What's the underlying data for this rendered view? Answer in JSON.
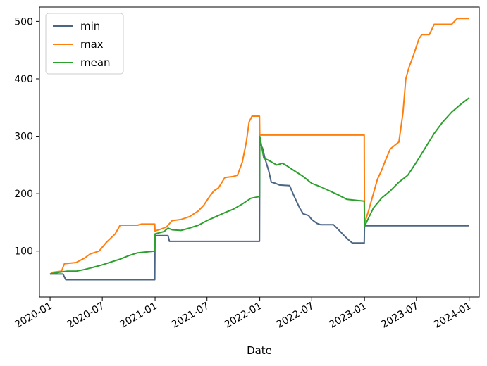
{
  "chart_data": {
    "type": "line",
    "title": "",
    "xlabel": "Date",
    "ylabel": "",
    "x_ticks": [
      "2020-01",
      "2020-07",
      "2021-01",
      "2021-07",
      "2022-01",
      "2022-07",
      "2023-01",
      "2023-07",
      "2024-01"
    ],
    "y_ticks": [
      100,
      200,
      300,
      400,
      500
    ],
    "xlim": [
      "2019-11-25",
      "2024-02-05"
    ],
    "ylim": [
      20,
      525
    ],
    "grid": false,
    "legend_position": "top-left",
    "colors": {
      "min": "#4b6584",
      "max": "#ff7f0e",
      "mean": "#2ca02c"
    },
    "series": [
      {
        "name": "min",
        "points": [
          [
            "2020-01-01",
            60
          ],
          [
            "2020-02-15",
            60
          ],
          [
            "2020-02-25",
            50
          ],
          [
            "2020-12-31",
            50
          ],
          [
            "2021-01-01",
            127
          ],
          [
            "2021-02-15",
            127
          ],
          [
            "2021-02-20",
            117
          ],
          [
            "2021-12-31",
            117
          ],
          [
            "2022-01-01",
            287
          ],
          [
            "2022-01-10",
            280
          ],
          [
            "2022-01-20",
            260
          ],
          [
            "2022-02-01",
            240
          ],
          [
            "2022-02-10",
            220
          ],
          [
            "2022-02-25",
            218
          ],
          [
            "2022-03-10",
            215
          ],
          [
            "2022-04-15",
            214
          ],
          [
            "2022-05-01",
            195
          ],
          [
            "2022-05-20",
            175
          ],
          [
            "2022-06-01",
            165
          ],
          [
            "2022-06-20",
            162
          ],
          [
            "2022-07-01",
            155
          ],
          [
            "2022-07-20",
            148
          ],
          [
            "2022-08-01",
            146
          ],
          [
            "2022-09-15",
            146
          ],
          [
            "2022-10-01",
            138
          ],
          [
            "2022-10-20",
            128
          ],
          [
            "2022-11-05",
            120
          ],
          [
            "2022-11-20",
            114
          ],
          [
            "2022-12-31",
            114
          ],
          [
            "2023-01-01",
            144
          ],
          [
            "2024-01-01",
            144
          ]
        ]
      },
      {
        "name": "max",
        "points": [
          [
            "2020-01-01",
            60
          ],
          [
            "2020-01-10",
            63
          ],
          [
            "2020-02-10",
            65
          ],
          [
            "2020-02-20",
            78
          ],
          [
            "2020-04-01",
            80
          ],
          [
            "2020-05-01",
            88
          ],
          [
            "2020-05-20",
            95
          ],
          [
            "2020-06-20",
            100
          ],
          [
            "2020-07-15",
            115
          ],
          [
            "2020-08-15",
            130
          ],
          [
            "2020-09-01",
            145
          ],
          [
            "2020-11-01",
            145
          ],
          [
            "2020-11-15",
            147
          ],
          [
            "2020-12-31",
            147
          ],
          [
            "2021-01-01",
            135
          ],
          [
            "2021-01-20",
            138
          ],
          [
            "2021-02-10",
            142
          ],
          [
            "2021-03-01",
            153
          ],
          [
            "2021-04-01",
            155
          ],
          [
            "2021-05-01",
            160
          ],
          [
            "2021-06-01",
            170
          ],
          [
            "2021-06-20",
            180
          ],
          [
            "2021-07-10",
            195
          ],
          [
            "2021-07-25",
            205
          ],
          [
            "2021-08-10",
            210
          ],
          [
            "2021-09-01",
            228
          ],
          [
            "2021-10-01",
            230
          ],
          [
            "2021-10-15",
            232
          ],
          [
            "2021-11-01",
            255
          ],
          [
            "2021-11-15",
            290
          ],
          [
            "2021-11-25",
            325
          ],
          [
            "2021-12-05",
            335
          ],
          [
            "2021-12-31",
            335
          ],
          [
            "2022-01-01",
            302
          ],
          [
            "2022-12-31",
            302
          ],
          [
            "2023-01-01",
            148
          ],
          [
            "2023-01-15",
            170
          ],
          [
            "2023-02-01",
            200
          ],
          [
            "2023-02-15",
            225
          ],
          [
            "2023-03-01",
            240
          ],
          [
            "2023-03-15",
            258
          ],
          [
            "2023-04-01",
            278
          ],
          [
            "2023-05-01",
            290
          ],
          [
            "2023-05-15",
            340
          ],
          [
            "2023-05-25",
            400
          ],
          [
            "2023-06-05",
            420
          ],
          [
            "2023-06-20",
            440
          ],
          [
            "2023-07-10",
            470
          ],
          [
            "2023-07-20",
            477
          ],
          [
            "2023-08-15",
            477
          ],
          [
            "2023-09-01",
            495
          ],
          [
            "2023-11-01",
            495
          ],
          [
            "2023-11-20",
            505
          ],
          [
            "2024-01-01",
            505
          ]
        ]
      },
      {
        "name": "mean",
        "points": [
          [
            "2020-01-01",
            60
          ],
          [
            "2020-02-01",
            63
          ],
          [
            "2020-03-01",
            65
          ],
          [
            "2020-04-01",
            65
          ],
          [
            "2020-05-01",
            68
          ],
          [
            "2020-06-01",
            72
          ],
          [
            "2020-07-01",
            76
          ],
          [
            "2020-08-01",
            81
          ],
          [
            "2020-09-01",
            86
          ],
          [
            "2020-10-01",
            92
          ],
          [
            "2020-11-01",
            97
          ],
          [
            "2020-12-31",
            100
          ],
          [
            "2021-01-01",
            130
          ],
          [
            "2021-02-01",
            134
          ],
          [
            "2021-02-15",
            140
          ],
          [
            "2021-03-01",
            137
          ],
          [
            "2021-04-01",
            136
          ],
          [
            "2021-05-01",
            140
          ],
          [
            "2021-06-01",
            145
          ],
          [
            "2021-07-01",
            153
          ],
          [
            "2021-08-01",
            160
          ],
          [
            "2021-09-01",
            167
          ],
          [
            "2021-10-01",
            173
          ],
          [
            "2021-11-01",
            182
          ],
          [
            "2021-12-01",
            192
          ],
          [
            "2021-12-31",
            195
          ],
          [
            "2022-01-01",
            300
          ],
          [
            "2022-01-15",
            262
          ],
          [
            "2022-02-01",
            258
          ],
          [
            "2022-03-01",
            250
          ],
          [
            "2022-03-20",
            253
          ],
          [
            "2022-04-01",
            250
          ],
          [
            "2022-05-01",
            240
          ],
          [
            "2022-06-01",
            230
          ],
          [
            "2022-07-01",
            218
          ],
          [
            "2022-08-01",
            212
          ],
          [
            "2022-09-01",
            205
          ],
          [
            "2022-10-01",
            198
          ],
          [
            "2022-11-01",
            190
          ],
          [
            "2022-12-31",
            187
          ],
          [
            "2023-01-01",
            143
          ],
          [
            "2023-02-01",
            175
          ],
          [
            "2023-03-01",
            192
          ],
          [
            "2023-04-01",
            205
          ],
          [
            "2023-05-01",
            220
          ],
          [
            "2023-06-01",
            232
          ],
          [
            "2023-07-01",
            255
          ],
          [
            "2023-08-01",
            280
          ],
          [
            "2023-09-01",
            305
          ],
          [
            "2023-10-01",
            325
          ],
          [
            "2023-11-01",
            342
          ],
          [
            "2023-12-01",
            355
          ],
          [
            "2024-01-01",
            367
          ]
        ]
      }
    ]
  }
}
